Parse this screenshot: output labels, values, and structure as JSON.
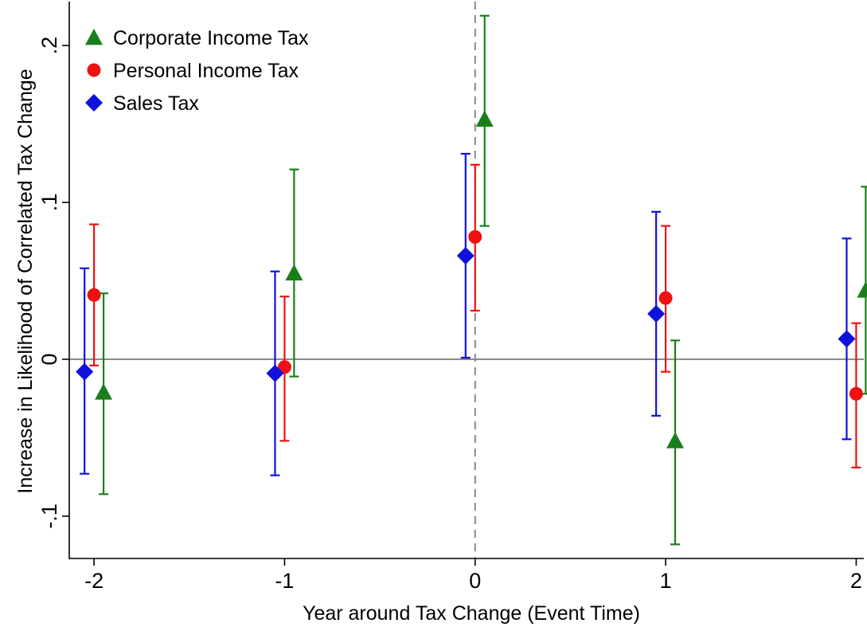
{
  "chart_data": {
    "type": "scatter",
    "subtype": "coefficient plot with confidence intervals",
    "xlabel": "Year around Tax Change (Event Time)",
    "ylabel": "Increase in Likelihood of Correlated Tax Change",
    "x_ticks": [
      -2,
      -1,
      0,
      1,
      2
    ],
    "x_tick_labels": [
      "-2",
      "-1",
      "0",
      "1",
      "2"
    ],
    "y_ticks": [
      -0.1,
      0,
      0.1,
      0.2
    ],
    "y_tick_labels": [
      "-.1",
      "0",
      ".1",
      ".2"
    ],
    "xlim": [
      -2.13,
      2.04
    ],
    "ylim": [
      -0.127,
      0.228
    ],
    "reference_lines": {
      "y_zero": true,
      "x_zero_dashed": true
    },
    "grid": false,
    "legend_position": "top-left",
    "series": [
      {
        "name": "Corporate Income Tax",
        "marker": "triangle",
        "color": "#1a7f1a",
        "x_offset": 0.05,
        "points": [
          {
            "x": -2,
            "y": -0.021,
            "lo": -0.086,
            "hi": 0.042
          },
          {
            "x": -1,
            "y": 0.055,
            "lo": -0.011,
            "hi": 0.121
          },
          {
            "x": 0,
            "y": 0.153,
            "lo": 0.085,
            "hi": 0.219
          },
          {
            "x": 1,
            "y": -0.052,
            "lo": -0.118,
            "hi": 0.012
          },
          {
            "x": 2,
            "y": 0.044,
            "lo": -0.022,
            "hi": 0.11
          }
        ]
      },
      {
        "name": "Personal Income Tax",
        "marker": "circle",
        "color": "#ee1111",
        "x_offset": 0.0,
        "points": [
          {
            "x": -2,
            "y": 0.041,
            "lo": -0.004,
            "hi": 0.086
          },
          {
            "x": -1,
            "y": -0.005,
            "lo": -0.052,
            "hi": 0.04
          },
          {
            "x": 0,
            "y": 0.078,
            "lo": 0.031,
            "hi": 0.124
          },
          {
            "x": 1,
            "y": 0.039,
            "lo": -0.008,
            "hi": 0.085
          },
          {
            "x": 2,
            "y": -0.022,
            "lo": -0.069,
            "hi": 0.023
          }
        ]
      },
      {
        "name": "Sales Tax",
        "marker": "diamond",
        "color": "#1111dd",
        "x_offset": -0.05,
        "points": [
          {
            "x": -2,
            "y": -0.008,
            "lo": -0.073,
            "hi": 0.058
          },
          {
            "x": -1,
            "y": -0.009,
            "lo": -0.074,
            "hi": 0.056
          },
          {
            "x": 0,
            "y": 0.066,
            "lo": 0.001,
            "hi": 0.131
          },
          {
            "x": 1,
            "y": 0.029,
            "lo": -0.036,
            "hi": 0.094
          },
          {
            "x": 2,
            "y": 0.013,
            "lo": -0.051,
            "hi": 0.077
          }
        ]
      }
    ]
  }
}
